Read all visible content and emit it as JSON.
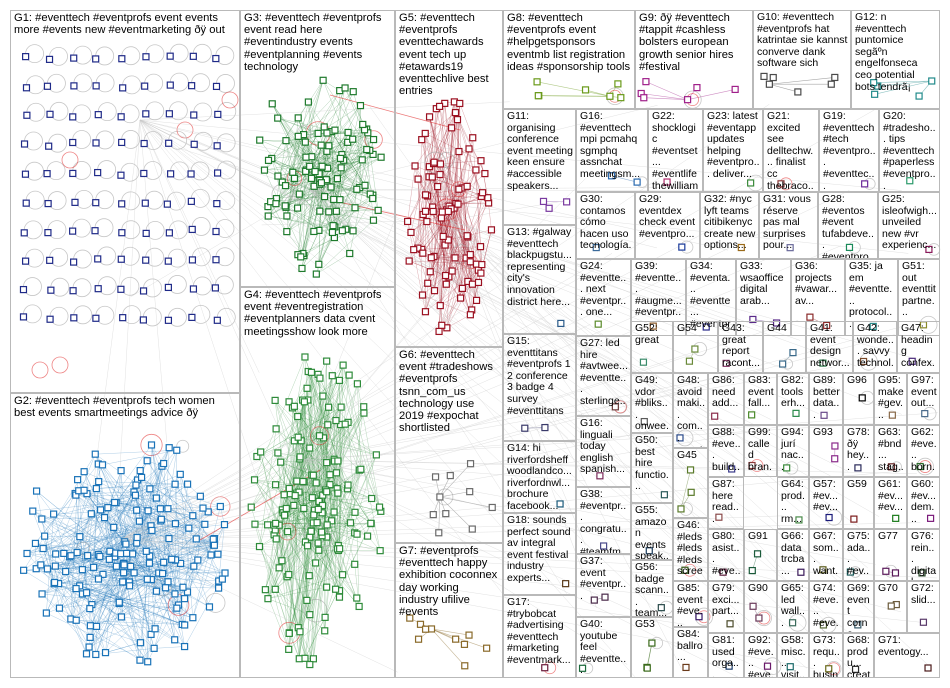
{
  "edge_color": "#c8c8c8",
  "loop_color": "#e02020",
  "groups": [
    {
      "id": "G1",
      "label": "G1: #eventtech #eventprofs event events more #events new #eventmarketing ðÿ out",
      "color": "#1f2a88",
      "density": "grid"
    },
    {
      "id": "G2",
      "label": "G2: #eventtech #eventprofs tech women best events smartmeetings advice ðÿ",
      "color": "#1a73b8",
      "density": "cluster"
    },
    {
      "id": "G3",
      "label": "G3: #eventtech #eventprofs event read here #eventindustry events #eventplanning #events technology",
      "color": "#1e7a2c",
      "density": "cluster"
    },
    {
      "id": "G4",
      "label": "G4: #eventtech #eventprofs event #eventregistration #eventplanners data cvent meetingsshow look more",
      "color": "#2e8b3a",
      "density": "cluster"
    },
    {
      "id": "G5",
      "label": "G5: #eventtech #eventprofs eventtechawards event tech up #etawards19 eventtechlive best entries",
      "color": "#9b1020",
      "density": "cluster"
    },
    {
      "id": "G6",
      "label": "G6: #eventtech event #tradeshows #eventprofs tsnn_com_us technology use 2019 #expochat shortlisted",
      "color": "#6a6a6a",
      "density": "sparse"
    },
    {
      "id": "G7",
      "label": "G7: #eventprofs #eventtech happy exhibition coconnex day working industry ufilive #events",
      "color": "#8a6a2a",
      "density": "sparse"
    },
    {
      "id": "G8",
      "label": "G8: #eventtech #eventprofs event #helpgetsponsors eventmb list registration ideas #sponsorship tools",
      "color": "#6a9a1a",
      "density": "sparse"
    },
    {
      "id": "G9",
      "label": "G9: ðÿ #eventtech #tappit #cashless bolsters european growth senior hires #festival",
      "color": "#a0208a",
      "density": "sparse"
    },
    {
      "id": "G10",
      "label": "G10: #eventtech #eventprofs hat katrintae sie kannst converve dank software sich",
      "color": "#4a4a4a",
      "density": "sparse"
    },
    {
      "id": "G12",
      "label": "G12: n #eventtech puntomice segãºn engelfonseca ceo potential bots tendrã¡",
      "color": "#208a8a",
      "density": "sparse"
    },
    {
      "id": "G11",
      "label": "G11: organising conference event meeting keen ensure #accessible speakers...",
      "color": "#7a3aa0",
      "density": "sparse"
    },
    {
      "id": "G16",
      "label": "G16: #eventtech mpi pcmahq sgmphq assnchat meetingsm...",
      "color": "#2a6ab0",
      "density": "sparse"
    },
    {
      "id": "G22",
      "label": "G22: shocklogic #eventset... #eventlife thewilliam... #feiraebs...",
      "color": "#b02a6a",
      "density": "sparse"
    },
    {
      "id": "G23",
      "label": "G23: latest #eventapp updates helping #eventpro... deliver...",
      "color": "#3a8a3a",
      "density": "sparse"
    },
    {
      "id": "G21",
      "label": "G21: excited see delltechw... finalist cc thebraco...",
      "color": "#8a3a3a",
      "density": "sparse"
    },
    {
      "id": "G19",
      "label": "G19: #eventtech #tech #eventpro... #eventtec... #meeting...",
      "color": "#6a2a9a",
      "density": "sparse"
    },
    {
      "id": "G20",
      "label": "G20: #tradesho... tips #eventtech #paperless #eventpro...",
      "color": "#2a9a6a",
      "density": "sparse"
    },
    {
      "id": "G30",
      "label": "G30: contamos cómo hacen uso tecnología...",
      "color": "#3a6a9a",
      "density": "sparse"
    },
    {
      "id": "G29",
      "label": "G29: eventdex check event #eventpro...",
      "color": "#1a3a9a",
      "density": "sparse"
    },
    {
      "id": "G32",
      "label": "G32: #nyc lyft teams citibikenyc create new options...",
      "color": "#9a6a1a",
      "density": "sparse"
    },
    {
      "id": "G31",
      "label": "G31: vous réserve pas mal surprises pour...",
      "color": "#6a6a9a",
      "density": "sparse"
    },
    {
      "id": "G28",
      "label": "G28: #eventos #event tufabdeve... #eventpro...",
      "color": "#1a8a5a",
      "density": "sparse"
    },
    {
      "id": "G25",
      "label": "G25: isleofwigh... unveiled new #vr experienc...",
      "color": "#8a1a5a",
      "density": "sparse"
    },
    {
      "id": "G13",
      "label": "G13: #galway #eventtech blackpugstu... representing city's innovation district here...",
      "color": "#2a5a8a",
      "density": "sparse"
    },
    {
      "id": "G24",
      "label": "G24: #eventte... next #eventpr... one...",
      "color": "#5a8a2a",
      "density": "sparse"
    },
    {
      "id": "G39",
      "label": "G39: #eventte... #augme... #eventpr...",
      "color": "#8a5a2a",
      "density": "sparse"
    },
    {
      "id": "G34",
      "label": "G34: #eventa... #eventte... #eventpr...",
      "color": "#2a2a8a",
      "density": "sparse"
    },
    {
      "id": "G33",
      "label": "G33: wsaoffice digital arab...",
      "color": "#5a2a8a",
      "density": "sparse"
    },
    {
      "id": "G36",
      "label": "G36: projects #vawar... av...",
      "color": "#8a2a2a",
      "density": "sparse"
    },
    {
      "id": "G35",
      "label": "G35: ja em #eventte... protocol...",
      "color": "#2a8a8a",
      "density": "sparse"
    },
    {
      "id": "G51",
      "label": "G51: out eventtit partne...",
      "color": "#8a8a2a",
      "density": "sparse"
    },
    {
      "id": "G15",
      "label": "G15: eventtitans #eventprofs 1 2 conference 3 badge 4 survey #eventtitans",
      "color": "#3a3a6a",
      "density": "sparse"
    },
    {
      "id": "G27",
      "label": "G27: led hire #avtwee... #eventte... sterlinge...",
      "color": "#6a3a3a",
      "density": "sparse"
    },
    {
      "id": "G52",
      "label": "G52: great",
      "color": "#3a8a6a",
      "density": "sparse"
    },
    {
      "id": "G54",
      "label": "G54",
      "color": "#6a8a3a",
      "density": "sparse"
    },
    {
      "id": "G43",
      "label": "G43: great report racont...",
      "color": "#8a3a6a",
      "density": "sparse"
    },
    {
      "id": "G44",
      "label": "G44",
      "color": "#3a6a8a",
      "density": "sparse"
    },
    {
      "id": "G41",
      "label": "G41: event design networ...",
      "color": "#2a7a4a",
      "density": "sparse"
    },
    {
      "id": "G42",
      "label": "G42: wonde... savvy technol...",
      "color": "#7a4a2a",
      "density": "sparse"
    },
    {
      "id": "G47",
      "label": "G47: heading confex... next...",
      "color": "#4a2a7a",
      "density": "sparse"
    },
    {
      "id": "G14",
      "label": "G14: hi riverfordsheff woodlandco... riverfordnwl... brochure facebook...",
      "color": "#1a5a7a",
      "density": "sparse"
    },
    {
      "id": "G49",
      "label": "G49: vdor #bliks... onwee...",
      "color": "#5a5a5a",
      "density": "sparse"
    },
    {
      "id": "G48",
      "label": "G48: avoid maki... com... event...",
      "color": "#2a4a8a",
      "density": "sparse"
    },
    {
      "id": "G86",
      "label": "G86: need add...",
      "color": "#8a2a4a",
      "density": "sparse"
    },
    {
      "id": "G83",
      "label": "G83: event fall...",
      "color": "#4a8a2a",
      "density": "sparse"
    },
    {
      "id": "G82",
      "label": "G82: tools erh...",
      "color": "#2a8a4a",
      "density": "sparse"
    },
    {
      "id": "G89",
      "label": "G89: better data...",
      "color": "#6a4a8a",
      "density": "sparse"
    },
    {
      "id": "G96",
      "label": "G96",
      "color": "#000000",
      "density": "sparse"
    },
    {
      "id": "G95",
      "label": "G95: make #gev...",
      "color": "#8a6a4a",
      "density": "sparse"
    },
    {
      "id": "G97",
      "label": "G97: event out...",
      "color": "#4a6a8a",
      "density": "sparse"
    },
    {
      "id": "G16b",
      "label": "G16: linguali today english spanish...",
      "color": "#7a2a5a",
      "density": "sparse"
    },
    {
      "id": "G50",
      "label": "G50: best hire functio...",
      "color": "#2a5a5a",
      "density": "sparse"
    },
    {
      "id": "G45",
      "label": "G45",
      "color": "#5a7a2a",
      "density": "sparse"
    },
    {
      "id": "G88",
      "label": "G88: #eve... build...",
      "color": "#3a3a8a",
      "density": "sparse"
    },
    {
      "id": "G99",
      "label": "G99: called bran...",
      "color": "#8a3a3a",
      "density": "sparse"
    },
    {
      "id": "G94",
      "label": "G94: jurí nac...",
      "color": "#3a8a3a",
      "density": "sparse"
    },
    {
      "id": "G93",
      "label": "G93",
      "color": "#8a2a8a",
      "density": "sparse"
    },
    {
      "id": "G78",
      "label": "G78: ðÿ hey...",
      "color": "#2a2a5a",
      "density": "sparse"
    },
    {
      "id": "G63",
      "label": "G63: #bnd... stag...",
      "color": "#6a2a2a",
      "density": "sparse"
    },
    {
      "id": "G62",
      "label": "G62: #eve... born...",
      "color": "#2a6a2a",
      "density": "sparse"
    },
    {
      "id": "G38",
      "label": "G38: #eventpr... congratu... #teamfm...",
      "color": "#4a4a8a",
      "density": "sparse"
    },
    {
      "id": "G87",
      "label": "G87: here read...",
      "color": "#8a4a4a",
      "density": "sparse"
    },
    {
      "id": "G64",
      "label": "G64: prod... rm...",
      "color": "#4a8a4a",
      "density": "sparse"
    },
    {
      "id": "G57",
      "label": "G57: #ev... #ev...",
      "color": "#1a1a7a",
      "density": "sparse"
    },
    {
      "id": "G59",
      "label": "G59",
      "color": "#7a1a1a",
      "density": "sparse"
    },
    {
      "id": "G61",
      "label": "G61: #ev... #ev...",
      "color": "#1a7a1a",
      "density": "sparse"
    },
    {
      "id": "G60",
      "label": "G60: #ev... dem...",
      "color": "#7a1a7a",
      "density": "sparse"
    },
    {
      "id": "G18",
      "label": "G18: sounds perfect sound av integral event festival industry experts...",
      "color": "#5a3a1a",
      "density": "sparse"
    },
    {
      "id": "G55",
      "label": "G55: amazon events speak...",
      "color": "#1a3a5a",
      "density": "sparse"
    },
    {
      "id": "G46",
      "label": "G46: #leds #leds #leds scree...",
      "color": "#3a5a1a",
      "density": "sparse"
    },
    {
      "id": "G80",
      "label": "G80: asist... #eve...",
      "color": "#5a1a3a",
      "density": "sparse"
    },
    {
      "id": "G91",
      "label": "G91",
      "color": "#1a5a3a",
      "density": "sparse"
    },
    {
      "id": "G66",
      "label": "G66: data trcba...",
      "color": "#3a1a5a",
      "density": "sparse"
    },
    {
      "id": "G67",
      "label": "G67: som... want...",
      "color": "#5a5a1a",
      "density": "sparse"
    },
    {
      "id": "G75",
      "label": "G75: ada... #ev... visit...",
      "color": "#1a5a5a",
      "density": "sparse"
    },
    {
      "id": "G77",
      "label": "G77",
      "color": "#5a1a5a",
      "density": "sparse"
    },
    {
      "id": "G76",
      "label": "G76: rein... digital eve...",
      "color": "#2a4a2a",
      "density": "sparse"
    },
    {
      "id": "G37",
      "label": "G37: event #eventpr...",
      "color": "#4a2a4a",
      "density": "sparse"
    },
    {
      "id": "G56",
      "label": "G56: badge scann... team...",
      "color": "#2a4a4a",
      "density": "sparse"
    },
    {
      "id": "G79",
      "label": "G79: exci... part...",
      "color": "#4a4a2a",
      "density": "sparse"
    },
    {
      "id": "G90",
      "label": "G90",
      "color": "#6a3a5a",
      "density": "sparse"
    },
    {
      "id": "G65",
      "label": "G65: led wall...",
      "color": "#3a6a5a",
      "density": "sparse"
    },
    {
      "id": "G74",
      "label": "G74: #eve... #eve...",
      "color": "#5a6a3a",
      "density": "sparse"
    },
    {
      "id": "G69",
      "label": "G69: event corne...",
      "color": "#3a5a6a",
      "density": "sparse"
    },
    {
      "id": "G70",
      "label": "G70",
      "color": "#6a5a3a",
      "density": "sparse"
    },
    {
      "id": "G72",
      "label": "G72: slid...",
      "color": "#5a3a6a",
      "density": "sparse"
    },
    {
      "id": "G17",
      "label": "G17: #trybobcat #advertising #eventtech #marketing #eventmark...",
      "color": "#6a1a3a",
      "density": "sparse"
    },
    {
      "id": "G85",
      "label": "G85: event #eve...",
      "color": "#3a1a6a",
      "density": "sparse"
    },
    {
      "id": "G40",
      "label": "G40: youtube feel #eventte...",
      "color": "#1a6a3a",
      "density": "sparse"
    },
    {
      "id": "G53",
      "label": "G53",
      "color": "#3a6a1a",
      "density": "sparse"
    },
    {
      "id": "G84",
      "label": "G84: ballro...",
      "color": "#6a3a1a",
      "density": "sparse"
    },
    {
      "id": "G81",
      "label": "G81: used orga...",
      "color": "#1a3a6a",
      "density": "sparse"
    },
    {
      "id": "G92",
      "label": "G92: #eve... #eve...",
      "color": "#6a1a6a",
      "density": "sparse"
    },
    {
      "id": "G58",
      "label": "G58: misc... visit...",
      "color": "#1a6a6a",
      "density": "sparse"
    },
    {
      "id": "G73",
      "label": "G73: requ... busin...",
      "color": "#6a6a1a",
      "density": "sparse"
    },
    {
      "id": "G68",
      "label": "G68: produ... creati...",
      "color": "#2a2a2a",
      "density": "sparse"
    },
    {
      "id": "G71",
      "label": "G71: eventogy...",
      "color": "#4a1a1a",
      "density": "sparse"
    }
  ]
}
